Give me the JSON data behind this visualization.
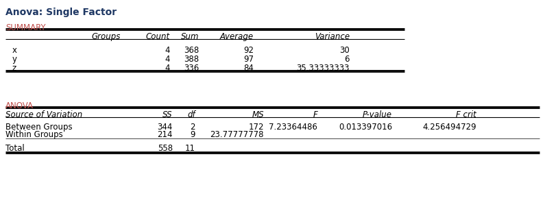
{
  "title": "Anova: Single Factor",
  "title_color": "#1F3864",
  "background_color": "#FFFFFF",
  "summary_label": "SUMMARY",
  "summary_header": [
    "Groups",
    "Count",
    "Sum",
    "Average",
    "Variance"
  ],
  "summary_rows": [
    [
      "x",
      "4",
      "368",
      "92",
      "30"
    ],
    [
      "y",
      "4",
      "388",
      "97",
      "6"
    ],
    [
      "z",
      "4",
      "336",
      "84",
      "35.33333333"
    ]
  ],
  "anova_label": "ANOVA",
  "anova_header": [
    "Source of Variation",
    "SS",
    "df",
    "MS",
    "F",
    "P-value",
    "F crit"
  ],
  "anova_rows": [
    [
      "Between Groups",
      "344",
      "2",
      "172",
      "7.23364486",
      "0.013397016",
      "4.256494729"
    ],
    [
      "Within Groups",
      "214",
      "9",
      "23.77777778",
      "",
      "",
      ""
    ],
    [
      "Total",
      "558",
      "11",
      "",
      "",
      "",
      ""
    ]
  ],
  "label_color": "#C0504D",
  "header_color": "#000000",
  "data_color": "#000000",
  "line_color": "#000000"
}
